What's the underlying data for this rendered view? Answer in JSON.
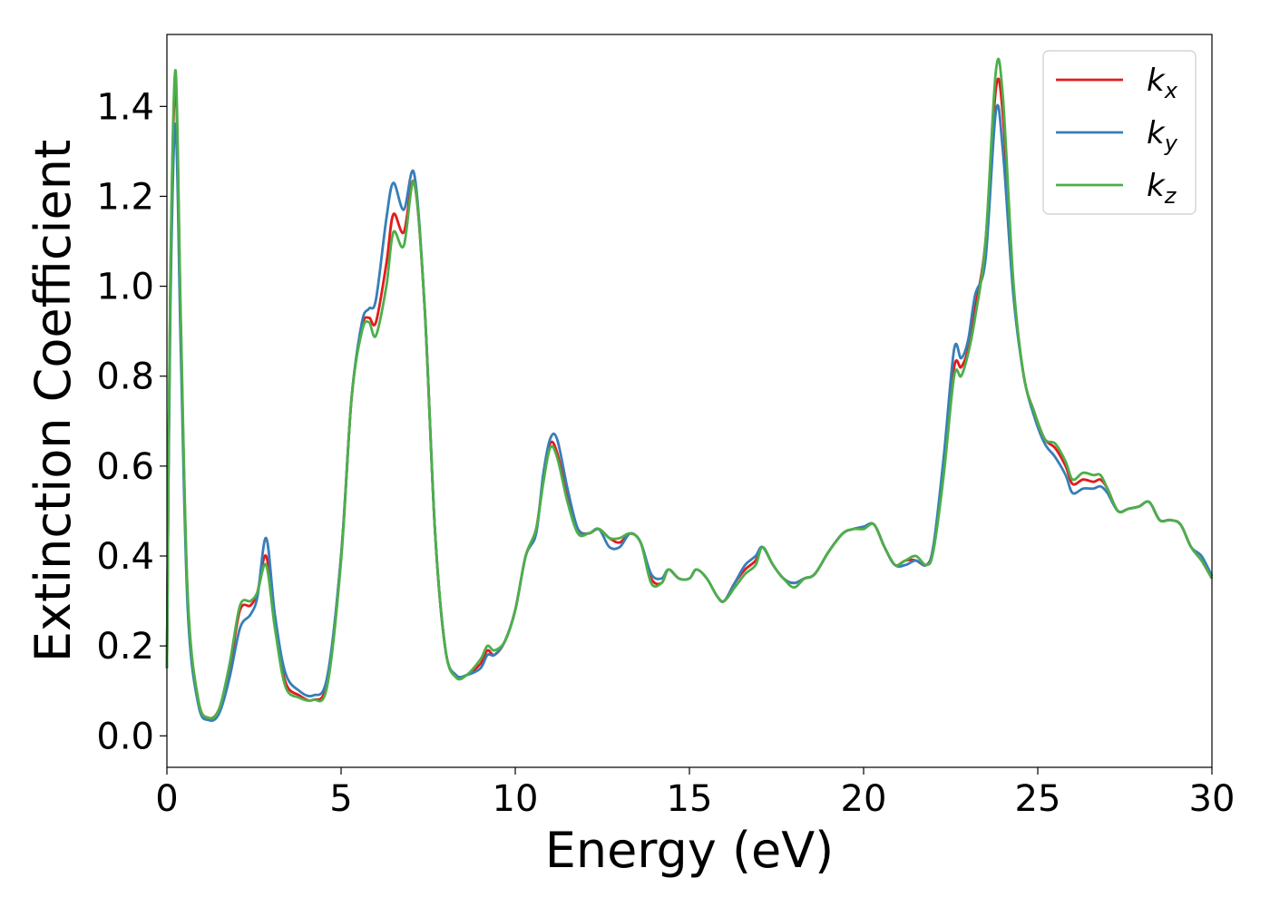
{
  "chart_data": {
    "type": "line",
    "title": "",
    "xlabel": "Energy (eV)",
    "ylabel": "Extinction Coefficient",
    "xlim": [
      0,
      30
    ],
    "ylim": [
      -0.07,
      1.56
    ],
    "xticks": [
      0,
      5,
      10,
      15,
      20,
      25,
      30
    ],
    "xtick_labels": [
      "0",
      "5",
      "10",
      "15",
      "20",
      "25",
      "30"
    ],
    "yticks": [
      0.0,
      0.2,
      0.4,
      0.6,
      0.8,
      1.0,
      1.2,
      1.4
    ],
    "ytick_labels": [
      "0.0",
      "0.2",
      "0.4",
      "0.6",
      "0.8",
      "1.0",
      "1.2",
      "1.4"
    ],
    "grid": false,
    "legend_position": "top-right",
    "series": [
      {
        "name": "k_x",
        "legend_main": "k",
        "legend_sub": "x",
        "color": "#e41a1c",
        "x": [
          0,
          0.1,
          0.25,
          0.4,
          0.6,
          0.9,
          1.2,
          1.5,
          1.8,
          2.1,
          2.4,
          2.6,
          2.85,
          3.1,
          3.4,
          3.8,
          4.2,
          4.6,
          5.0,
          5.3,
          5.6,
          5.8,
          6.0,
          6.3,
          6.5,
          6.8,
          7.1,
          7.4,
          7.7,
          8.0,
          8.3,
          8.6,
          9.0,
          9.2,
          9.4,
          9.7,
          10.0,
          10.3,
          10.6,
          10.8,
          11.0,
          11.2,
          11.5,
          11.8,
          12.1,
          12.4,
          12.7,
          13.0,
          13.3,
          13.6,
          13.9,
          14.2,
          14.4,
          14.7,
          15.0,
          15.2,
          15.5,
          15.8,
          16.0,
          16.3,
          16.6,
          16.9,
          17.1,
          17.4,
          17.7,
          18.0,
          18.3,
          18.6,
          19.0,
          19.4,
          19.7,
          20.0,
          20.3,
          20.6,
          20.9,
          21.2,
          21.5,
          21.8,
          22.0,
          22.3,
          22.6,
          22.8,
          23.0,
          23.2,
          23.5,
          23.8,
          24.0,
          24.3,
          24.6,
          24.9,
          25.2,
          25.5,
          25.8,
          26.0,
          26.3,
          26.6,
          26.8,
          27.0,
          27.3,
          27.6,
          27.9,
          28.2,
          28.5,
          28.8,
          29.1,
          29.4,
          29.7,
          30.0
        ],
        "y": [
          0.15,
          1.0,
          1.45,
          0.9,
          0.3,
          0.08,
          0.04,
          0.06,
          0.15,
          0.28,
          0.29,
          0.32,
          0.4,
          0.25,
          0.12,
          0.09,
          0.08,
          0.12,
          0.4,
          0.75,
          0.91,
          0.93,
          0.92,
          1.05,
          1.16,
          1.12,
          1.23,
          0.95,
          0.45,
          0.19,
          0.135,
          0.135,
          0.16,
          0.19,
          0.18,
          0.21,
          0.28,
          0.4,
          0.46,
          0.57,
          0.65,
          0.63,
          0.53,
          0.46,
          0.45,
          0.46,
          0.44,
          0.43,
          0.45,
          0.43,
          0.35,
          0.34,
          0.37,
          0.35,
          0.35,
          0.37,
          0.35,
          0.31,
          0.3,
          0.34,
          0.37,
          0.39,
          0.42,
          0.38,
          0.35,
          0.34,
          0.35,
          0.36,
          0.41,
          0.45,
          0.46,
          0.465,
          0.47,
          0.42,
          0.38,
          0.39,
          0.39,
          0.38,
          0.42,
          0.6,
          0.82,
          0.82,
          0.86,
          0.95,
          1.1,
          1.44,
          1.38,
          1.0,
          0.8,
          0.72,
          0.66,
          0.64,
          0.6,
          0.56,
          0.57,
          0.565,
          0.57,
          0.55,
          0.5,
          0.505,
          0.51,
          0.52,
          0.48,
          0.48,
          0.47,
          0.42,
          0.39,
          0.35
        ]
      },
      {
        "name": "k_y",
        "legend_main": "k",
        "legend_sub": "y",
        "color": "#377eb8",
        "x": [
          0,
          0.1,
          0.25,
          0.4,
          0.6,
          0.9,
          1.2,
          1.5,
          1.8,
          2.1,
          2.4,
          2.6,
          2.85,
          3.1,
          3.4,
          3.8,
          4.2,
          4.6,
          5.0,
          5.3,
          5.6,
          5.8,
          6.0,
          6.3,
          6.5,
          6.8,
          7.1,
          7.4,
          7.7,
          8.0,
          8.3,
          8.6,
          9.0,
          9.2,
          9.4,
          9.7,
          10.0,
          10.3,
          10.6,
          10.8,
          11.0,
          11.2,
          11.5,
          11.8,
          12.1,
          12.4,
          12.7,
          13.0,
          13.3,
          13.6,
          13.9,
          14.2,
          14.4,
          14.7,
          15.0,
          15.2,
          15.5,
          15.8,
          16.0,
          16.3,
          16.6,
          16.9,
          17.1,
          17.4,
          17.7,
          18.0,
          18.3,
          18.6,
          19.0,
          19.4,
          19.7,
          20.0,
          20.3,
          20.6,
          20.9,
          21.2,
          21.5,
          21.8,
          22.0,
          22.3,
          22.6,
          22.8,
          23.0,
          23.2,
          23.5,
          23.8,
          24.0,
          24.3,
          24.6,
          24.9,
          25.2,
          25.5,
          25.8,
          26.0,
          26.3,
          26.6,
          26.8,
          27.0,
          27.3,
          27.6,
          27.9,
          28.2,
          28.5,
          28.8,
          29.1,
          29.4,
          29.7,
          30.0
        ],
        "y": [
          0.15,
          0.95,
          1.36,
          0.85,
          0.28,
          0.07,
          0.035,
          0.05,
          0.13,
          0.24,
          0.27,
          0.31,
          0.44,
          0.27,
          0.14,
          0.1,
          0.09,
          0.13,
          0.4,
          0.75,
          0.92,
          0.95,
          0.97,
          1.15,
          1.23,
          1.17,
          1.25,
          0.95,
          0.45,
          0.19,
          0.135,
          0.135,
          0.15,
          0.18,
          0.18,
          0.21,
          0.28,
          0.4,
          0.45,
          0.58,
          0.66,
          0.66,
          0.55,
          0.46,
          0.45,
          0.46,
          0.42,
          0.42,
          0.45,
          0.43,
          0.36,
          0.35,
          0.37,
          0.35,
          0.35,
          0.37,
          0.35,
          0.31,
          0.3,
          0.34,
          0.38,
          0.4,
          0.42,
          0.38,
          0.35,
          0.34,
          0.35,
          0.36,
          0.41,
          0.45,
          0.46,
          0.465,
          0.47,
          0.42,
          0.38,
          0.38,
          0.39,
          0.38,
          0.42,
          0.62,
          0.86,
          0.84,
          0.88,
          0.98,
          1.06,
          1.39,
          1.3,
          0.98,
          0.8,
          0.71,
          0.65,
          0.62,
          0.58,
          0.54,
          0.55,
          0.55,
          0.555,
          0.54,
          0.5,
          0.505,
          0.51,
          0.52,
          0.48,
          0.48,
          0.47,
          0.42,
          0.4,
          0.355
        ]
      },
      {
        "name": "k_z",
        "legend_main": "k",
        "legend_sub": "z",
        "color": "#4daf4a",
        "x": [
          0,
          0.1,
          0.25,
          0.4,
          0.6,
          0.9,
          1.2,
          1.5,
          1.8,
          2.1,
          2.4,
          2.6,
          2.85,
          3.1,
          3.4,
          3.8,
          4.2,
          4.6,
          5.0,
          5.3,
          5.6,
          5.8,
          6.0,
          6.3,
          6.5,
          6.8,
          7.1,
          7.4,
          7.7,
          8.0,
          8.3,
          8.6,
          9.0,
          9.2,
          9.4,
          9.7,
          10.0,
          10.3,
          10.6,
          10.8,
          11.0,
          11.2,
          11.5,
          11.8,
          12.1,
          12.4,
          12.7,
          13.0,
          13.3,
          13.6,
          13.9,
          14.2,
          14.4,
          14.7,
          15.0,
          15.2,
          15.5,
          15.8,
          16.0,
          16.3,
          16.6,
          16.9,
          17.1,
          17.4,
          17.7,
          18.0,
          18.3,
          18.6,
          19.0,
          19.4,
          19.7,
          20.0,
          20.3,
          20.6,
          20.9,
          21.2,
          21.5,
          21.8,
          22.0,
          22.3,
          22.6,
          22.8,
          23.0,
          23.2,
          23.5,
          23.8,
          24.0,
          24.3,
          24.6,
          24.9,
          25.2,
          25.5,
          25.8,
          26.0,
          26.3,
          26.6,
          26.8,
          27.0,
          27.3,
          27.6,
          27.9,
          28.2,
          28.5,
          28.8,
          29.1,
          29.4,
          29.7,
          30.0
        ],
        "y": [
          0.15,
          1.02,
          1.48,
          0.92,
          0.31,
          0.08,
          0.04,
          0.06,
          0.16,
          0.29,
          0.3,
          0.32,
          0.38,
          0.24,
          0.11,
          0.085,
          0.08,
          0.11,
          0.39,
          0.75,
          0.9,
          0.92,
          0.89,
          1.0,
          1.12,
          1.09,
          1.23,
          0.95,
          0.45,
          0.19,
          0.13,
          0.135,
          0.17,
          0.2,
          0.19,
          0.21,
          0.28,
          0.4,
          0.46,
          0.56,
          0.64,
          0.62,
          0.52,
          0.45,
          0.45,
          0.46,
          0.44,
          0.44,
          0.45,
          0.43,
          0.34,
          0.34,
          0.37,
          0.35,
          0.35,
          0.37,
          0.35,
          0.31,
          0.3,
          0.33,
          0.36,
          0.38,
          0.42,
          0.38,
          0.35,
          0.33,
          0.35,
          0.36,
          0.41,
          0.45,
          0.46,
          0.46,
          0.47,
          0.42,
          0.38,
          0.39,
          0.4,
          0.38,
          0.41,
          0.58,
          0.8,
          0.8,
          0.85,
          0.93,
          1.1,
          1.48,
          1.42,
          1.01,
          0.8,
          0.72,
          0.66,
          0.65,
          0.61,
          0.57,
          0.585,
          0.58,
          0.58,
          0.55,
          0.5,
          0.505,
          0.51,
          0.52,
          0.48,
          0.48,
          0.47,
          0.42,
          0.39,
          0.35
        ]
      }
    ]
  }
}
